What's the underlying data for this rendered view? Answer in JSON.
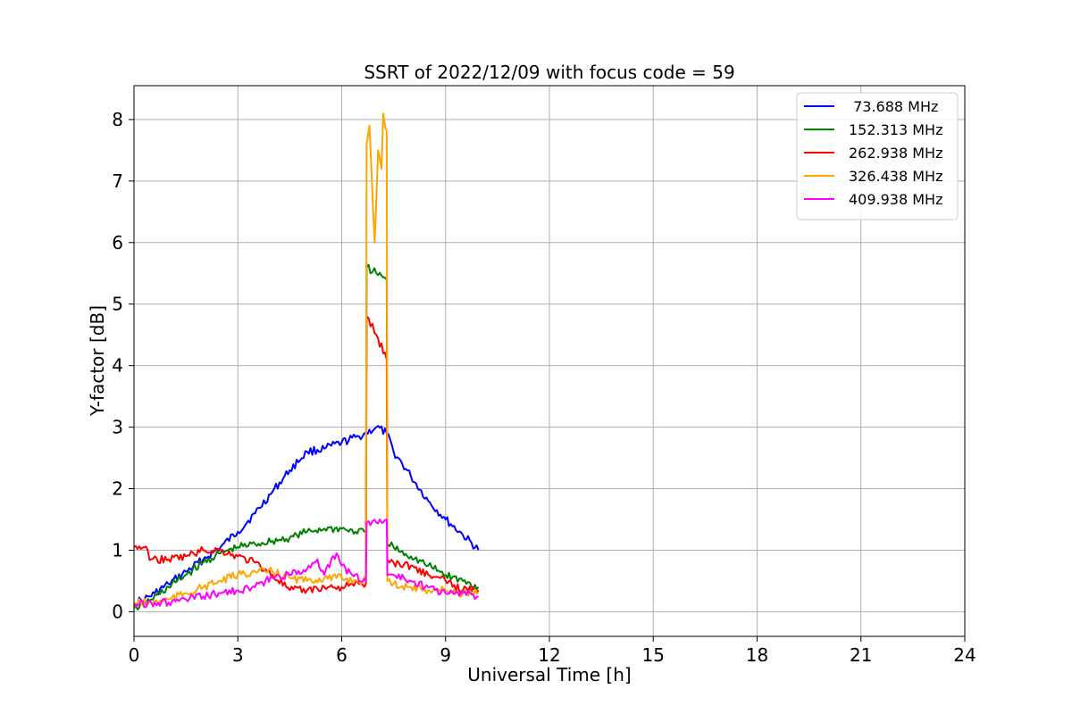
{
  "chart_data": {
    "type": "line",
    "title": "SSRT of 2022/12/09 with focus code = 59",
    "xlabel": "Universal Time [h]",
    "ylabel": "Y-factor [dB]",
    "xlim": [
      0,
      24
    ],
    "ylim": [
      -0.4,
      8.55
    ],
    "xticks": [
      0,
      3,
      6,
      9,
      12,
      15,
      18,
      21,
      24
    ],
    "yticks": [
      0,
      1,
      2,
      3,
      4,
      5,
      6,
      7,
      8
    ],
    "grid": true,
    "legend_position": "top-right",
    "series": [
      {
        "name": " 73.688 MHz",
        "color": "#0000ff",
        "x": [
          0,
          0.3,
          0.6,
          1.0,
          1.5,
          2.0,
          2.5,
          3.0,
          3.5,
          4.0,
          4.5,
          5.0,
          5.5,
          6.0,
          6.5,
          6.7,
          7.0,
          7.3,
          7.5,
          8.0,
          8.5,
          9.0,
          9.5,
          9.95
        ],
        "y": [
          0.15,
          0.2,
          0.3,
          0.45,
          0.65,
          0.85,
          1.05,
          1.3,
          1.6,
          1.95,
          2.3,
          2.6,
          2.65,
          2.75,
          2.85,
          2.9,
          3.0,
          2.9,
          2.6,
          2.2,
          1.8,
          1.5,
          1.25,
          1.0
        ]
      },
      {
        "name": "152.313 MHz",
        "color": "#008000",
        "x": [
          0,
          0.5,
          1.0,
          1.5,
          2.0,
          2.5,
          3.0,
          3.5,
          4.0,
          4.5,
          5.0,
          5.5,
          6.0,
          6.4,
          6.7,
          6.72,
          7.0,
          7.3,
          7.32,
          7.5,
          8.0,
          8.5,
          9.0,
          9.5,
          9.95
        ],
        "y": [
          0.05,
          0.2,
          0.4,
          0.6,
          0.8,
          0.95,
          1.05,
          1.1,
          1.15,
          1.2,
          1.3,
          1.35,
          1.35,
          1.3,
          1.3,
          5.6,
          5.5,
          5.4,
          1.1,
          1.05,
          0.9,
          0.75,
          0.6,
          0.5,
          0.4
        ]
      },
      {
        "name": "262.938 MHz",
        "color": "#ff0000",
        "x": [
          0,
          0.3,
          0.5,
          1.0,
          1.5,
          2.0,
          2.5,
          3.0,
          3.5,
          4.0,
          4.5,
          5.0,
          5.5,
          6.0,
          6.5,
          6.7,
          6.72,
          7.0,
          7.3,
          7.32,
          7.5,
          8.0,
          8.5,
          9.0,
          9.5,
          9.95
        ],
        "y": [
          1.05,
          1.05,
          0.85,
          0.85,
          0.9,
          1.0,
          1.0,
          0.9,
          0.8,
          0.6,
          0.35,
          0.35,
          0.4,
          0.4,
          0.45,
          0.45,
          4.8,
          4.5,
          4.1,
          0.85,
          0.8,
          0.75,
          0.6,
          0.5,
          0.35,
          0.35
        ]
      },
      {
        "name": "326.438 MHz",
        "color": "#ffa500",
        "x": [
          0,
          0.5,
          1.0,
          1.5,
          2.0,
          2.5,
          3.0,
          3.5,
          4.0,
          4.5,
          5.0,
          5.5,
          6.0,
          6.5,
          6.7,
          6.72,
          6.8,
          6.95,
          7.05,
          7.15,
          7.2,
          7.3,
          7.32,
          7.5,
          8.0,
          8.5,
          9.0,
          9.5,
          9.95
        ],
        "y": [
          0.15,
          0.15,
          0.2,
          0.3,
          0.4,
          0.5,
          0.6,
          0.65,
          0.65,
          0.55,
          0.5,
          0.55,
          0.55,
          0.5,
          0.5,
          7.6,
          7.9,
          6.0,
          7.5,
          7.2,
          8.1,
          7.8,
          0.5,
          0.45,
          0.4,
          0.35,
          0.35,
          0.3,
          0.3
        ]
      },
      {
        "name": "409.938 MHz",
        "color": "#ff00ff",
        "x": [
          0,
          0.5,
          1.0,
          1.5,
          2.0,
          2.5,
          3.0,
          3.5,
          4.0,
          4.5,
          5.0,
          5.3,
          5.5,
          5.85,
          6.0,
          6.3,
          6.7,
          6.72,
          7.0,
          7.3,
          7.32,
          7.5,
          8.0,
          8.5,
          9.0,
          9.5,
          9.95
        ],
        "y": [
          0.12,
          0.15,
          0.15,
          0.2,
          0.25,
          0.3,
          0.35,
          0.4,
          0.55,
          0.6,
          0.7,
          0.85,
          0.6,
          0.95,
          0.75,
          0.6,
          0.5,
          1.45,
          1.45,
          1.5,
          0.6,
          0.6,
          0.5,
          0.4,
          0.3,
          0.3,
          0.25
        ]
      }
    ]
  }
}
